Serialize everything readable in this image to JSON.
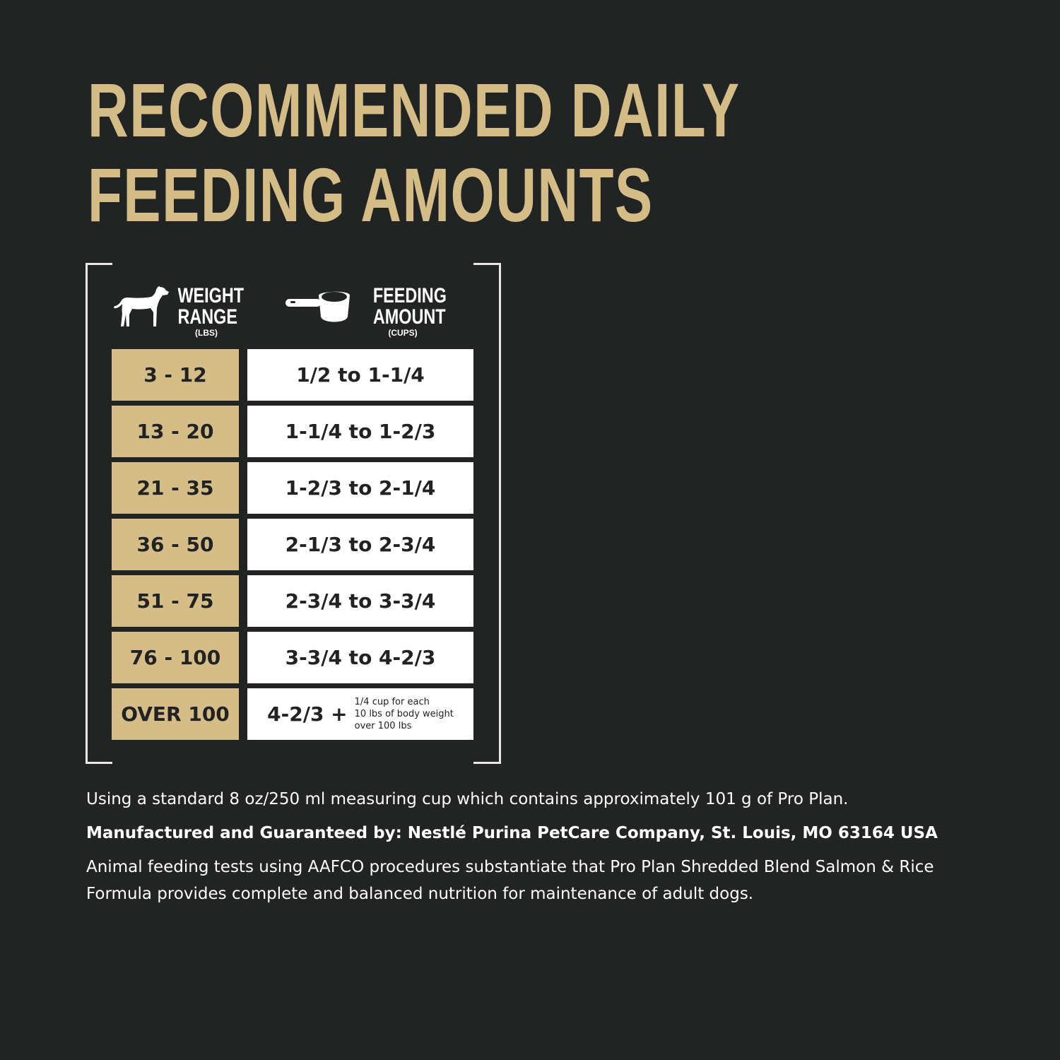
{
  "title": {
    "line1": "RECOMMENDED DAILY",
    "line2": "FEEDING AMOUNTS"
  },
  "colors": {
    "background": "#222424",
    "gold": "#d4bd87",
    "white": "#ffffff"
  },
  "table": {
    "weight_header": {
      "line1": "WEIGHT",
      "line2": "RANGE",
      "unit": "(LBS)",
      "icon": "dog-icon"
    },
    "amount_header": {
      "line1": "FEEDING",
      "line2": "AMOUNT",
      "unit": "(CUPS)",
      "icon": "measuring-cup-icon"
    },
    "rows": [
      {
        "weight": "3 - 12",
        "amount": "1/2 to 1-1/4"
      },
      {
        "weight": "13 - 20",
        "amount": "1-1/4 to 1-2/3"
      },
      {
        "weight": "21 - 35",
        "amount": "1-2/3 to 2-1/4"
      },
      {
        "weight": "36 - 50",
        "amount": "2-1/3 to 2-3/4"
      },
      {
        "weight": "51 - 75",
        "amount": "2-3/4 to 3-3/4"
      },
      {
        "weight": "76 - 100",
        "amount": "3-3/4 to 4-2/3"
      },
      {
        "weight": "OVER 100",
        "amount": "4-2/3 +",
        "note": {
          "l1": "1/4 cup for each",
          "l2": "10 lbs of body weight",
          "l3": "over 100 lbs"
        }
      }
    ]
  },
  "footer": {
    "cup_note": "Using a standard 8 oz/250 ml measuring cup which contains approximately 101 g of Pro Plan.",
    "manufacturer": "Manufactured and Guaranteed by: Nestlé Purina PetCare Company, St. Louis, MO 63164 USA",
    "aafco": "Animal feeding tests using AAFCO procedures substantiate that Pro Plan Shredded Blend Salmon & Rice Formula provides complete and balanced nutrition for maintenance of adult dogs."
  }
}
